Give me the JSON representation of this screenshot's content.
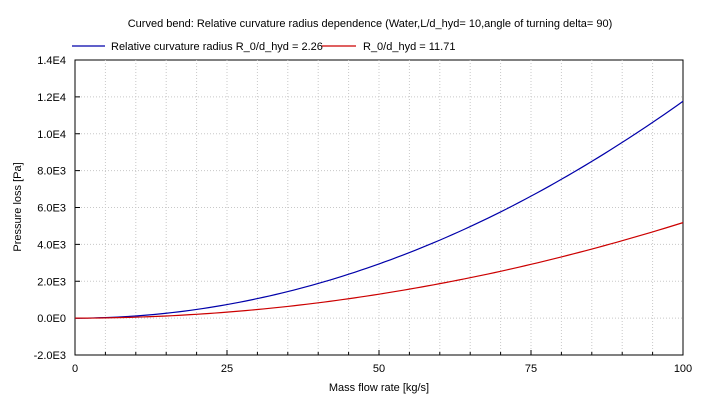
{
  "chart_data": {
    "type": "line",
    "title": "Curved bend: Relative curvature radius dependence (Water,L/d_hyd= 10,angle of turning delta= 90)",
    "xlabel": "Mass flow rate [kg/s]",
    "ylabel": "Pressure loss [Pa]",
    "xlim": [
      0,
      100
    ],
    "ylim": [
      -2000,
      14000
    ],
    "x_ticks": [
      0,
      25,
      50,
      75,
      100
    ],
    "x_tick_labels": [
      "0",
      "25",
      "50",
      "75",
      "100"
    ],
    "y_ticks": [
      -2000,
      0,
      2000,
      4000,
      6000,
      8000,
      10000,
      12000,
      14000
    ],
    "y_tick_labels": [
      "-2.0E3",
      "0.0E0",
      "2.0E3",
      "4.0E3",
      "6.0E3",
      "8.0E3",
      "1.0E4",
      "1.2E4",
      "1.4E4"
    ],
    "grid": true,
    "legend_position": "top",
    "x": [
      0,
      10,
      20,
      30,
      40,
      50,
      60,
      70,
      80,
      90,
      100
    ],
    "series": [
      {
        "name": "Relative curvature radius R_0/d_hyd = 2.26",
        "color": "#0000aa",
        "values": [
          0,
          117,
          470,
          1060,
          1880,
          2940,
          4230,
          5760,
          7530,
          9530,
          11760
        ]
      },
      {
        "name": "R_0/d_hyd = 11.71",
        "color": "#cc0000",
        "values": [
          0,
          52,
          208,
          467,
          830,
          1300,
          1870,
          2540,
          3320,
          4200,
          5180
        ]
      }
    ]
  }
}
